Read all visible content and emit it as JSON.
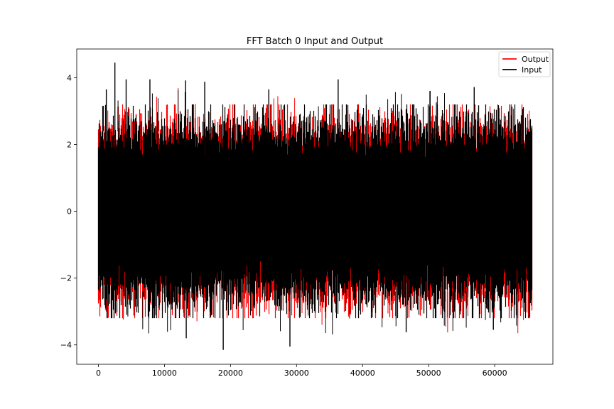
{
  "chart_data": {
    "type": "line",
    "title": "FFT Batch 0 Input and Output",
    "xlabel": "",
    "ylabel": "",
    "xlim": [
      -3277,
      68813
    ],
    "ylim": [
      -4.58,
      4.86
    ],
    "x_ticks": [
      0,
      10000,
      20000,
      30000,
      40000,
      50000,
      60000
    ],
    "x_tick_labels": [
      "0",
      "10000",
      "20000",
      "30000",
      "40000",
      "50000",
      "60000"
    ],
    "y_ticks": [
      -4,
      -2,
      0,
      2,
      4
    ],
    "y_tick_labels": [
      "−4",
      "−2",
      "0",
      "2",
      "4"
    ],
    "grid": false,
    "legend_position": "top-right",
    "n_points": 65536,
    "series": [
      {
        "name": "Output",
        "color": "#ff0000",
        "distribution": "noise",
        "mean": 0,
        "std": 1.0,
        "x_range": [
          0,
          65535
        ]
      },
      {
        "name": "Input",
        "color": "#000000",
        "distribution": "noise",
        "mean": 0,
        "std": 1.0,
        "x_range": [
          0,
          65535
        ]
      }
    ],
    "extremes": [
      {
        "x": 2500,
        "y": 4.45
      },
      {
        "x": 1200,
        "y": 3.65
      },
      {
        "x": 4200,
        "y": 3.95
      },
      {
        "x": 7800,
        "y": 3.95
      },
      {
        "x": 13200,
        "y": 3.92
      },
      {
        "x": 16100,
        "y": 3.88
      },
      {
        "x": 25800,
        "y": 3.65
      },
      {
        "x": 36300,
        "y": 3.95
      },
      {
        "x": 50200,
        "y": 3.6
      },
      {
        "x": 56900,
        "y": 3.72
      },
      {
        "x": 18900,
        "y": -4.15
      },
      {
        "x": 29000,
        "y": -4.05
      },
      {
        "x": 13300,
        "y": -3.8
      },
      {
        "x": 46600,
        "y": -3.62
      },
      {
        "x": 59800,
        "y": -3.55
      }
    ]
  }
}
